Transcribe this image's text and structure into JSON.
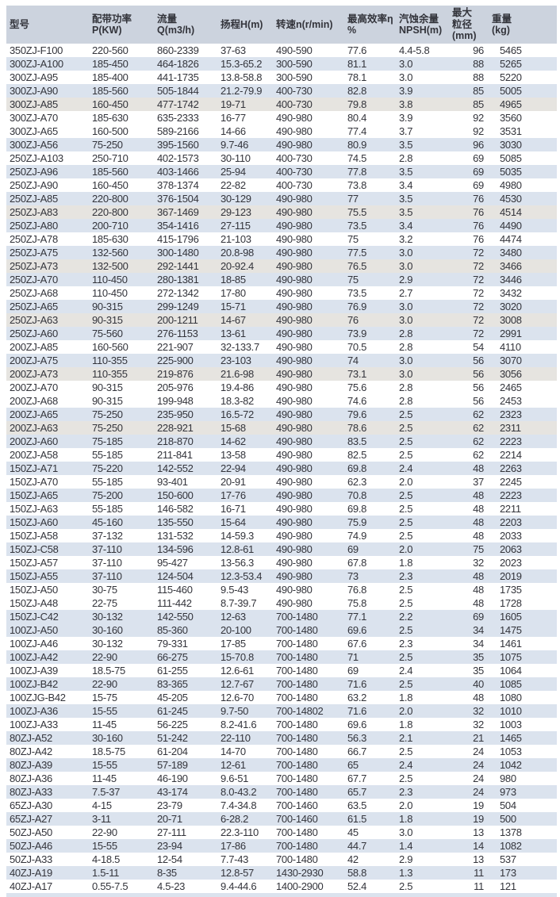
{
  "colors": {
    "header_bg": "#ccd3de",
    "stripe_blue": "#dbe3ee",
    "stripe_gray": "#e6e4e0",
    "row_white": "#ffffff",
    "text": "#33343b"
  },
  "table": {
    "columns": [
      {
        "id": "model",
        "label_lines": [
          "型号"
        ]
      },
      {
        "id": "power",
        "label_lines": [
          "配带功率",
          "P(KW)"
        ]
      },
      {
        "id": "flow",
        "label_lines": [
          "流量",
          "Q(m3/h)"
        ]
      },
      {
        "id": "head",
        "label_lines": [
          "扬程H(m)"
        ]
      },
      {
        "id": "speed",
        "label_lines": [
          "转速n(r/min)"
        ]
      },
      {
        "id": "efficiency",
        "label_lines": [
          "最高效率η",
          "%"
        ]
      },
      {
        "id": "npsh",
        "label_lines": [
          "汽蚀余量",
          "NPSH(m)"
        ]
      },
      {
        "id": "max_particle",
        "label_lines": [
          "最大",
          "粒径",
          "(mm)"
        ]
      },
      {
        "id": "weight",
        "label_lines": [
          "重量",
          "(kg)"
        ]
      }
    ],
    "rows": [
      {
        "shade": "w",
        "cells": [
          "350ZJ-F100",
          "220-560",
          "860-2339",
          "37-63",
          "490-590",
          "77.6",
          "4.4-5.8",
          "96",
          "5465"
        ]
      },
      {
        "shade": "b",
        "cells": [
          "300ZJ-A100",
          "185-450",
          "464-1826",
          "15.3-65.2",
          "300-590",
          "81.1",
          "3.0",
          "88",
          "5265"
        ]
      },
      {
        "shade": "w",
        "cells": [
          "300ZJ-A95",
          "185-400",
          "441-1735",
          "13.8-58.8",
          "300-590",
          "78.1",
          "3.0",
          "88",
          "5220"
        ]
      },
      {
        "shade": "b",
        "cells": [
          "300ZJ-A90",
          "185-560",
          "505-1844",
          "21.2-79.9",
          "400-730",
          "82.8",
          "3.9",
          "85",
          "5005"
        ]
      },
      {
        "shade": "g",
        "cells": [
          "300ZJ-A85",
          "160-450",
          "477-1742",
          "19-71",
          "400-730",
          "79.8",
          "3.8",
          "85",
          "4965"
        ]
      },
      {
        "shade": "w",
        "cells": [
          "300ZJ-A70",
          "185-630",
          "635-2333",
          "16-77",
          "490-980",
          "80.4",
          "3.9",
          "92",
          "3560"
        ]
      },
      {
        "shade": "w",
        "cells": [
          "300ZJ-A65",
          "160-500",
          "589-2166",
          "14-66",
          "490-980",
          "77.4",
          "3.7",
          "92",
          "3531"
        ]
      },
      {
        "shade": "b",
        "cells": [
          "300ZJ-A56",
          "75-250",
          "395-1560",
          "9.7-46",
          "490-980",
          "80.9",
          "3.5",
          "96",
          "3030"
        ]
      },
      {
        "shade": "w",
        "cells": [
          "250ZJ-A103",
          "250-710",
          "402-1573",
          "30-110",
          "400-730",
          "74.5",
          "2.8",
          "69",
          "5085"
        ]
      },
      {
        "shade": "b",
        "cells": [
          "250ZJ-A96",
          "185-560",
          "403-1466",
          "25-94",
          "400-730",
          "77.8",
          "3.5",
          "69",
          "5035"
        ]
      },
      {
        "shade": "w",
        "cells": [
          "250ZJ-A90",
          "160-450",
          "378-1374",
          "22-82",
          "400-730",
          "73.8",
          "3.4",
          "69",
          "4980"
        ]
      },
      {
        "shade": "b",
        "cells": [
          "250ZJ-A85",
          "220-800",
          "376-1504",
          "30-129",
          "490-980",
          "77",
          "3.5",
          "76",
          "4530"
        ]
      },
      {
        "shade": "g",
        "cells": [
          "250ZJ-A83",
          "220-800",
          "367-1469",
          "29-123",
          "490-980",
          "75.5",
          "3.5",
          "76",
          "4514"
        ]
      },
      {
        "shade": "b",
        "cells": [
          "250ZJ-A80",
          "200-710",
          "354-1416",
          "27-115",
          "490-980",
          "73.5",
          "3.4",
          "76",
          "4490"
        ]
      },
      {
        "shade": "w",
        "cells": [
          "250ZJ-A78",
          "185-630",
          "415-1796",
          "21-103",
          "490-980",
          "75",
          "3.2",
          "76",
          "4474"
        ]
      },
      {
        "shade": "b",
        "cells": [
          "250ZJ-A75",
          "132-560",
          "300-1480",
          "20.8-98",
          "490-980",
          "77.5",
          "3.0",
          "72",
          "3480"
        ]
      },
      {
        "shade": "g",
        "cells": [
          "250ZJ-A73",
          "132-500",
          "292-1441",
          "20-92.4",
          "490-980",
          "76.5",
          "3.0",
          "72",
          "3466"
        ]
      },
      {
        "shade": "b",
        "cells": [
          "250ZJ-A70",
          "110-450",
          "280-1381",
          "18-85",
          "490-980",
          "75",
          "2.9",
          "72",
          "3446"
        ]
      },
      {
        "shade": "w",
        "cells": [
          "250ZJ-A68",
          "110-450",
          "272-1342",
          "17-80",
          "490-980",
          "73.5",
          "2.7",
          "72",
          "3432"
        ]
      },
      {
        "shade": "b",
        "cells": [
          "250ZJ-A65",
          "90-315",
          "299-1249",
          "15-71",
          "490-980",
          "76.9",
          "3.0",
          "72",
          "3020"
        ]
      },
      {
        "shade": "g",
        "cells": [
          "250ZJ-A63",
          "90-315",
          "200-1211",
          "14-67",
          "490-980",
          "76",
          "3.0",
          "72",
          "3008"
        ]
      },
      {
        "shade": "b",
        "cells": [
          "250ZJ-A60",
          "75-560",
          "276-1153",
          "13-61",
          "490-980",
          "73.9",
          "2.8",
          "72",
          "2991"
        ]
      },
      {
        "shade": "w",
        "cells": [
          "200ZJ-A85",
          "160-560",
          "221-907",
          "32-133.7",
          "490-980",
          "70.5",
          "2.8",
          "54",
          "4110"
        ]
      },
      {
        "shade": "b",
        "cells": [
          "200ZJ-A75",
          "110-355",
          "225-900",
          "23-103",
          "490-980",
          "74",
          "3.0",
          "56",
          "3070"
        ]
      },
      {
        "shade": "g",
        "cells": [
          "200ZJ-A73",
          "110-355",
          "219-876",
          "21.6-98",
          "490-980",
          "73.1",
          "3.0",
          "56",
          "3056"
        ]
      },
      {
        "shade": "w",
        "cells": [
          "200ZJ-A70",
          "90-315",
          "205-976",
          "19.4-86",
          "490-980",
          "75.6",
          "2.8",
          "56",
          "2465"
        ]
      },
      {
        "shade": "w",
        "cells": [
          "200ZJ-A68",
          "90-315",
          "199-948",
          "18.3-82",
          "490-980",
          "74.6",
          "2.8",
          "56",
          "2453"
        ]
      },
      {
        "shade": "b",
        "cells": [
          "200ZJ-A65",
          "75-250",
          "235-950",
          "16.5-72",
          "490-980",
          "79.6",
          "2.5",
          "62",
          "2323"
        ]
      },
      {
        "shade": "g",
        "cells": [
          "200ZJ-A63",
          "75-250",
          "228-921",
          "15-68",
          "490-980",
          "78.6",
          "2.5",
          "62",
          "2311"
        ]
      },
      {
        "shade": "b",
        "cells": [
          "200ZJ-A60",
          "75-185",
          "218-870",
          "14-62",
          "490-980",
          "83.5",
          "2.5",
          "62",
          "2223"
        ]
      },
      {
        "shade": "w",
        "cells": [
          "200ZJ-A58",
          "55-185",
          "211-841",
          "13-58",
          "490-980",
          "82.5",
          "2.5",
          "62",
          "2214"
        ]
      },
      {
        "shade": "b",
        "cells": [
          "150ZJ-A71",
          "75-220",
          "142-552",
          "22-94",
          "490-980",
          "69.8",
          "2.4",
          "48",
          "2263"
        ]
      },
      {
        "shade": "w",
        "cells": [
          "150ZJ-A70",
          "55-185",
          "93-401",
          "20-91",
          "490-980",
          "62.3",
          "2.0",
          "37",
          "2245"
        ]
      },
      {
        "shade": "b",
        "cells": [
          "150ZJ-A65",
          "75-200",
          "150-600",
          "17-76",
          "490-980",
          "70.8",
          "2.5",
          "48",
          "2223"
        ]
      },
      {
        "shade": "w",
        "cells": [
          "150ZJ-A63",
          "55-185",
          "146-582",
          "16-71",
          "490-980",
          "69.8",
          "2.5",
          "48",
          "2211"
        ]
      },
      {
        "shade": "b",
        "cells": [
          "150ZJ-A60",
          "45-160",
          "135-550",
          "15-64",
          "490-980",
          "75.9",
          "2.5",
          "48",
          "2203"
        ]
      },
      {
        "shade": "w",
        "cells": [
          "150ZJ-A58",
          "37-132",
          "131-532",
          "14-59.3",
          "490-980",
          "74.9",
          "2.5",
          "48",
          "2033"
        ]
      },
      {
        "shade": "b",
        "cells": [
          "150ZJ-C58",
          "37-110",
          "134-596",
          "12.8-61",
          "490-980",
          "69",
          "2.0",
          "75",
          "2063"
        ]
      },
      {
        "shade": "w",
        "cells": [
          "150ZJ-A57",
          "37-110",
          "95-427",
          "13-56.3",
          "490-980",
          "67.8",
          "1.8",
          "32",
          "2023"
        ]
      },
      {
        "shade": "b",
        "cells": [
          "150ZJ-A55",
          "37-110",
          "124-504",
          "12.3-53.4",
          "490-980",
          "73",
          "2.3",
          "48",
          "2019"
        ]
      },
      {
        "shade": "w",
        "cells": [
          "150ZJ-A50",
          "30-75",
          "115-460",
          "9.5-43",
          "490-980",
          "76.8",
          "2.5",
          "48",
          "1735"
        ]
      },
      {
        "shade": "w",
        "cells": [
          "150ZJ-A48",
          "22-75",
          "111-442",
          "8.7-39.7",
          "490-980",
          "75.8",
          "2.5",
          "48",
          "1728"
        ]
      },
      {
        "shade": "b",
        "cells": [
          "150ZJ-C42",
          "30-132",
          "142-550",
          "12-63",
          "700-1480",
          "77.1",
          "2.2",
          "69",
          "1605"
        ]
      },
      {
        "shade": "b",
        "cells": [
          "100ZJ-A50",
          "30-160",
          "85-360",
          "20-100",
          "700-1480",
          "69.6",
          "2.5",
          "34",
          "1475"
        ]
      },
      {
        "shade": "w",
        "cells": [
          "100ZJ-A46",
          "30-132",
          "79-331",
          "17-85",
          "700-1480",
          "67.6",
          "2.3",
          "34",
          "1461"
        ]
      },
      {
        "shade": "b",
        "cells": [
          "100ZJ-A42",
          "22-90",
          "66-275",
          "15-70.8",
          "700-1480",
          "71",
          "2.5",
          "35",
          "1075"
        ]
      },
      {
        "shade": "w",
        "cells": [
          "100ZJ-A39",
          "18.5-75",
          "61-255",
          "12.6-61",
          "700-1480",
          "69",
          "2.4",
          "35",
          "1064"
        ]
      },
      {
        "shade": "b",
        "cells": [
          "100ZJ-B42",
          "22-90",
          "83-365",
          "12.7-67",
          "700-1480",
          "71.6",
          "2.5",
          "40",
          "1085"
        ]
      },
      {
        "shade": "w",
        "cells": [
          "100ZJG-B42",
          "15-75",
          "45-205",
          "12.6-70",
          "700-1480",
          "63.2",
          "1.8",
          "48",
          "1080"
        ]
      },
      {
        "shade": "b",
        "cells": [
          "100ZJ-A36",
          "15-55",
          "61-245",
          "9.7-50",
          "700-14802",
          "71.6",
          "2.0",
          "32",
          "1010"
        ]
      },
      {
        "shade": "w",
        "cells": [
          "100ZJ-A33",
          "11-45",
          "56-225",
          "8.2-41.6",
          "700-1480",
          "69.6",
          "1.8",
          "32",
          "1003"
        ]
      },
      {
        "shade": "b",
        "cells": [
          "80ZJ-A52",
          "30-160",
          "51-242",
          "22-110",
          "700-1480",
          "56.3",
          "2.1",
          "21",
          "1465"
        ]
      },
      {
        "shade": "w",
        "cells": [
          "80ZJ-A42",
          "18.5-75",
          "61-204",
          "14-70",
          "700-1480",
          "66.7",
          "2.5",
          "24",
          "1053"
        ]
      },
      {
        "shade": "b",
        "cells": [
          "80ZJ-A39",
          "15-55",
          "57-189",
          "12-61",
          "700-1480",
          "65",
          "2.4",
          "24",
          "1042"
        ]
      },
      {
        "shade": "w",
        "cells": [
          "80ZJ-A36",
          "11-45",
          "46-190",
          "9.6-51",
          "700-1480",
          "67.7",
          "2.5",
          "24",
          "980"
        ]
      },
      {
        "shade": "b",
        "cells": [
          "80ZJ-A33",
          "7.5-37",
          "43-174",
          "8.0-43.2",
          "700-1480",
          "65.7",
          "2.3",
          "24",
          "973"
        ]
      },
      {
        "shade": "w",
        "cells": [
          "65ZJ-A30",
          "4-15",
          "23-79",
          "7.4-34.8",
          "700-1460",
          "63.5",
          "2.0",
          "19",
          "504"
        ]
      },
      {
        "shade": "b",
        "cells": [
          "65ZJ-A27",
          "3-11",
          "20-71",
          "6-28.2",
          "700-1460",
          "61.5",
          "1.8",
          "19",
          "500"
        ]
      },
      {
        "shade": "w",
        "cells": [
          "50ZJ-A50",
          "22-90",
          "27-111",
          "22.3-110",
          "700-1480",
          "45",
          "3.0",
          "13",
          "1378"
        ]
      },
      {
        "shade": "b",
        "cells": [
          "50ZJ-A46",
          "15-55",
          "23-94",
          "17-86",
          "700-1480",
          "44.7",
          "1.4",
          "14",
          "1082"
        ]
      },
      {
        "shade": "w",
        "cells": [
          "50ZJ-A33",
          "4-18.5",
          "12-54",
          "7.7-43",
          "700-1480",
          "42",
          "2.9",
          "13",
          "537"
        ]
      },
      {
        "shade": "b",
        "cells": [
          "40ZJ-A19",
          "1.5-11",
          "8-35",
          "12.8-57",
          "1430-2930",
          "58.8",
          "1.3",
          "11",
          "173"
        ]
      },
      {
        "shade": "w",
        "cells": [
          "40ZJ-A17",
          "0.55-7.5",
          "4.5-23",
          "9.4-44.6",
          "1400-2900",
          "52.4",
          "2.5",
          "11",
          "121"
        ]
      }
    ]
  }
}
